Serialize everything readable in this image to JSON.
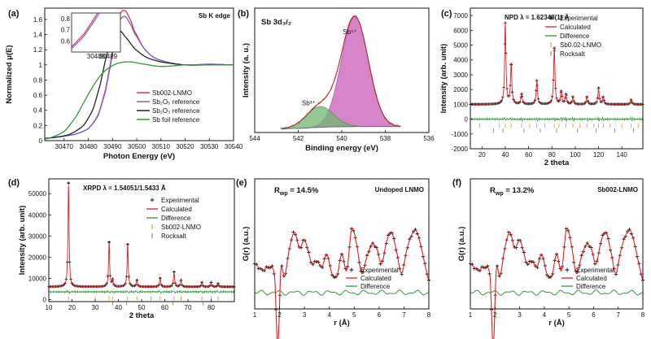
{
  "chart_data": [
    {
      "id": "a",
      "panel_label": "(a)",
      "type": "line",
      "title": "Sb K edge",
      "xlabel": "Photon Energy (eV)",
      "ylabel": "Normalized μ(E)",
      "xlim": [
        30462,
        30540
      ],
      "ylim": [
        0.0,
        1.75
      ],
      "xticks": [
        30470,
        30480,
        30490,
        30500,
        30510,
        30520,
        30530,
        30540
      ],
      "yticks": [
        0.0,
        0.2,
        0.4,
        0.6,
        0.8,
        1.0,
        1.2,
        1.4,
        1.6
      ],
      "series": [
        {
          "name": "Sb002-LNMO",
          "color": "#e8304a",
          "x": [
            30462,
            30474,
            30480,
            30484,
            30487,
            30489,
            30491,
            30493,
            30495,
            30497,
            30499,
            30503,
            30507,
            30512,
            30520,
            30530,
            30540
          ],
          "y": [
            0.03,
            0.08,
            0.16,
            0.34,
            0.66,
            1.0,
            1.38,
            1.66,
            1.72,
            1.62,
            1.45,
            1.22,
            1.1,
            1.04,
            1.0,
            1.01,
            1.0
          ]
        },
        {
          "name": "Sb₂O₅ reference",
          "color": "#6f66c8",
          "x": [
            30462,
            30474,
            30480,
            30484,
            30487,
            30489,
            30491,
            30493,
            30495,
            30497,
            30499,
            30503,
            30507,
            30512,
            30520,
            30530,
            30540
          ],
          "y": [
            0.03,
            0.08,
            0.16,
            0.33,
            0.64,
            0.97,
            1.33,
            1.58,
            1.64,
            1.56,
            1.42,
            1.22,
            1.1,
            1.04,
            1.0,
            1.01,
            1.0
          ]
        },
        {
          "name": "Sb₂O₃ reference",
          "color": "#222222",
          "x": [
            30462,
            30472,
            30478,
            30482,
            30485,
            30487,
            30489,
            30491,
            30493,
            30495,
            30499,
            30504,
            30510,
            30520,
            30530,
            30540
          ],
          "y": [
            0.03,
            0.08,
            0.2,
            0.42,
            0.75,
            1.05,
            1.3,
            1.44,
            1.45,
            1.38,
            1.22,
            1.1,
            1.04,
            1.0,
            1.0,
            1.0
          ]
        },
        {
          "name": "Sb foil reference",
          "color": "#2e9a38",
          "x": [
            30462,
            30470,
            30475,
            30479,
            30482,
            30485,
            30488,
            30492,
            30497,
            30503,
            30510,
            30520,
            30530,
            30540
          ],
          "y": [
            0.02,
            0.12,
            0.32,
            0.55,
            0.72,
            0.86,
            0.95,
            1.02,
            1.04,
            1.01,
            0.98,
            1.0,
            1.0,
            1.0
          ]
        }
      ],
      "inset": {
        "xlim": [
          30486,
          30490
        ],
        "ylim": [
          0.5,
          0.85
        ],
        "xticks": [
          30488,
          30489
        ],
        "yticks": [
          0.6,
          0.7,
          0.8
        ]
      }
    },
    {
      "id": "b",
      "panel_label": "(b)",
      "type": "area",
      "title": "Sb 3d₃/₂",
      "xlabel": "Binding energy (eV)",
      "ylabel": "Intensity (a. u.)",
      "xlim": [
        544,
        536
      ],
      "xticks": [
        544,
        542,
        540,
        538,
        536
      ],
      "components": [
        {
          "name": "Sb⁵⁺",
          "center": 539.4,
          "height": 1.0,
          "color": "#d070c0"
        },
        {
          "name": "Sb³⁺",
          "center": 541.0,
          "height": 0.19,
          "color": "#6fb870"
        }
      ],
      "background": 0.07
    },
    {
      "id": "c",
      "panel_label": "(c)",
      "type": "scatter",
      "title": "NPD λ = 1.62348(1) Å",
      "xlabel": "2 theta",
      "ylabel": "Intensity (arb. unit)",
      "xlim": [
        10,
        158
      ],
      "ylim": [
        -2000,
        7500
      ],
      "xticks": [
        20,
        40,
        60,
        80,
        100,
        120,
        140
      ],
      "yticks": [
        -2000,
        -1000,
        0,
        1000,
        2000,
        3000,
        4000,
        5000,
        6000,
        7000
      ],
      "baseline": 1000,
      "peaks": [
        [
          40,
          6500
        ],
        [
          45,
          3700
        ],
        [
          54,
          1700
        ],
        [
          67,
          2600
        ],
        [
          82,
          4800
        ],
        [
          88,
          1900
        ],
        [
          92,
          1700
        ],
        [
          98,
          1500
        ],
        [
          110,
          1500
        ],
        [
          120,
          2100
        ],
        [
          124,
          1500
        ],
        [
          148,
          1300
        ]
      ],
      "ticks_sb": [
        18,
        35,
        40,
        45,
        54,
        61,
        67,
        74,
        82,
        86,
        92,
        98,
        104,
        110,
        116,
        120,
        124,
        130,
        140,
        148,
        154
      ],
      "ticks_rock": [
        30,
        38,
        56,
        70,
        84,
        102,
        118,
        134,
        150
      ],
      "legend": [
        "Experimental",
        "Calculated",
        "Difference",
        "Sb0.02-LNMO",
        "Rocksalt"
      ]
    },
    {
      "id": "d",
      "panel_label": "(d)",
      "type": "scatter",
      "title": "XRPD λ = 1.54051/1.5433 Å",
      "xlabel": "2 theta",
      "ylabel": "Intensity (arb. unit)",
      "xlim": [
        10,
        90
      ],
      "ylim": [
        -1000,
        57000
      ],
      "xticks": [
        10,
        20,
        30,
        40,
        50,
        60,
        70,
        80
      ],
      "yticks": [
        0,
        10000,
        20000,
        30000,
        40000,
        50000
      ],
      "baseline": 6000,
      "peaks": [
        [
          18.5,
          55000
        ],
        [
          36,
          27000
        ],
        [
          37.5,
          9000
        ],
        [
          44,
          26000
        ],
        [
          48,
          9000
        ],
        [
          58,
          10000
        ],
        [
          64,
          13000
        ],
        [
          67,
          9000
        ],
        [
          76,
          8000
        ],
        [
          80,
          8000
        ],
        [
          83,
          7500
        ]
      ],
      "ticks_sb": [
        18.5,
        30,
        36,
        37.5,
        44,
        48,
        54,
        58,
        64,
        67,
        76,
        80,
        83
      ],
      "ticks_rock": [
        37.5,
        43.5,
        63.5,
        76.5
      ],
      "legend": [
        "Experimental",
        "Calculated",
        "Difference",
        "Sb002-LNMO",
        "Rocksalt"
      ]
    },
    {
      "id": "e",
      "panel_label": "(e)",
      "type": "line",
      "title": "Undoped LNMO",
      "rwp": "R",
      "rwp_sub": "wp",
      "rwp_value": " = 14.5%",
      "xlabel": "r (Å)",
      "ylabel": "G(r) (a.u.)",
      "xlim": [
        1,
        8
      ],
      "xticks": [
        1,
        2,
        3,
        4,
        5,
        6,
        7,
        8
      ],
      "x": [
        1.0,
        1.3,
        1.6,
        1.8,
        1.93,
        2.05,
        2.2,
        2.4,
        2.6,
        2.8,
        3.0,
        3.15,
        3.3,
        3.5,
        3.7,
        3.9,
        4.1,
        4.3,
        4.5,
        4.7,
        4.9,
        5.1,
        5.3,
        5.5,
        5.7,
        5.9,
        6.1,
        6.3,
        6.5,
        6.7,
        6.9,
        7.1,
        7.3,
        7.5,
        7.7,
        7.9,
        8.0
      ],
      "y": [
        0.3,
        0.2,
        0.25,
        0.1,
        -1.0,
        0.2,
        0.1,
        0.55,
        0.8,
        0.55,
        0.68,
        0.5,
        0.3,
        0.35,
        0.25,
        0.45,
        0.15,
        0.1,
        0.45,
        0.2,
        0.85,
        0.6,
        0.15,
        0.4,
        0.6,
        0.55,
        0.3,
        0.65,
        0.8,
        0.5,
        0.15,
        0.5,
        0.75,
        0.82,
        0.55,
        0.2,
        0.05
      ],
      "legend": [
        "Experimental",
        "Calculated",
        "Difference"
      ]
    },
    {
      "id": "f",
      "panel_label": "(f)",
      "type": "line",
      "title": "Sb002-LNMO",
      "rwp": "R",
      "rwp_sub": "wp",
      "rwp_value": " = 13.2%",
      "xlabel": "r (Å)",
      "ylabel": "G(r) (a.u.)",
      "xlim": [
        1,
        8
      ],
      "xticks": [
        1,
        2,
        3,
        4,
        5,
        6,
        7,
        8
      ],
      "x": [
        1.0,
        1.3,
        1.6,
        1.8,
        1.93,
        2.05,
        2.2,
        2.4,
        2.6,
        2.8,
        3.0,
        3.15,
        3.3,
        3.5,
        3.7,
        3.9,
        4.1,
        4.3,
        4.5,
        4.7,
        4.9,
        5.1,
        5.3,
        5.5,
        5.7,
        5.9,
        6.1,
        6.3,
        6.5,
        6.7,
        6.9,
        7.1,
        7.3,
        7.5,
        7.7,
        7.9,
        8.0
      ],
      "y": [
        0.3,
        0.2,
        0.25,
        0.1,
        -1.0,
        0.2,
        0.1,
        0.55,
        0.8,
        0.55,
        0.68,
        0.5,
        0.3,
        0.35,
        0.25,
        0.45,
        0.15,
        0.1,
        0.45,
        0.2,
        0.85,
        0.6,
        0.15,
        0.4,
        0.6,
        0.55,
        0.3,
        0.65,
        0.8,
        0.5,
        0.15,
        0.5,
        0.75,
        0.82,
        0.55,
        0.2,
        0.05
      ],
      "legend": [
        "Experimental",
        "Calculated",
        "Difference"
      ]
    }
  ]
}
